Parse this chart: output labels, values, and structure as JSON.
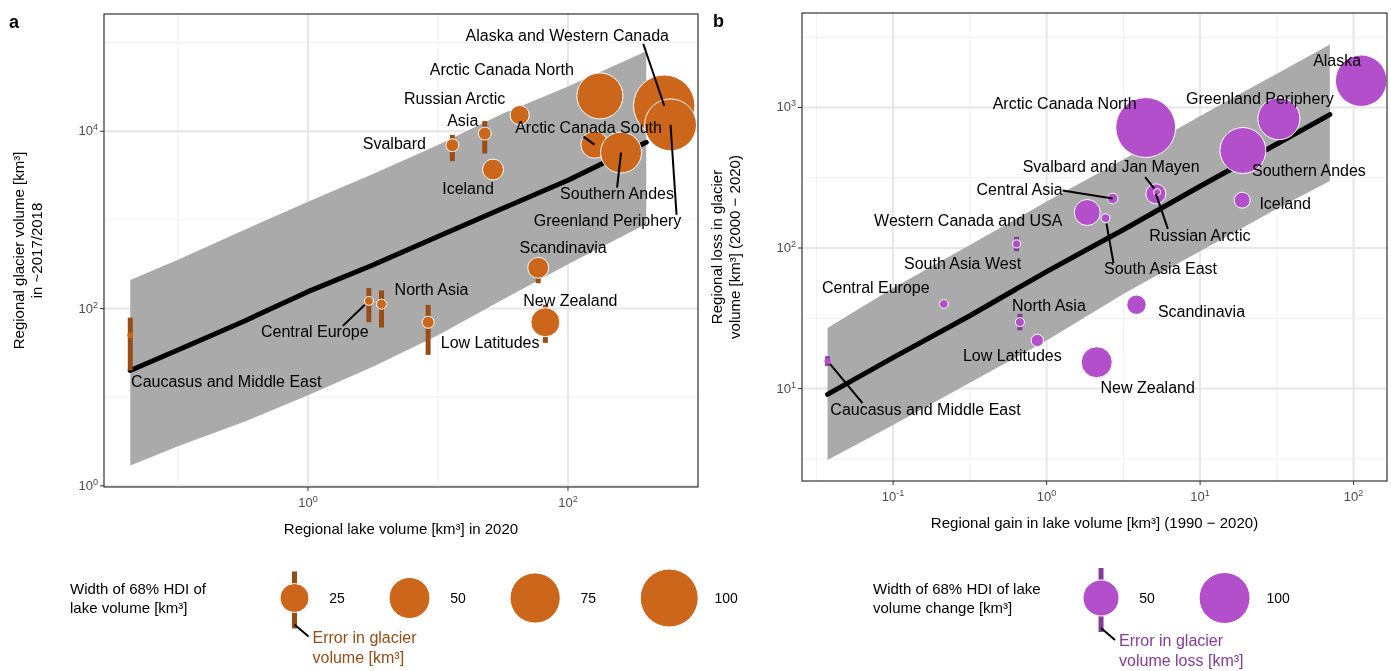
{
  "chart_data": [
    {
      "type": "bubble",
      "title": "a",
      "xlabel": "Regional lake volume [km³] in 2020",
      "ylabel": "Regional glacier volume [km³]\nin ~2017/2018",
      "legend_title": "Width of 68% HDI of\nlake volume [km³]",
      "log": "xy",
      "grid": true,
      "size_legend": [
        25,
        50,
        75,
        100
      ],
      "xlim": [
        0.027,
        1000
      ],
      "ylim": [
        0.97,
        210000
      ],
      "xticks": [
        {
          "value": 1,
          "label": "10$^{0}$"
        },
        {
          "value": 100,
          "label": "10$^{2}$"
        }
      ],
      "yticks": [
        {
          "value": 1,
          "label": "10$^{0}$"
        },
        {
          "value": 100,
          "label": "10$^{2}$"
        },
        {
          "value": 10000,
          "label": "10$^{4}$"
        }
      ],
      "series": [
        {
          "type": "line",
          "color": "#000000",
          "x": [
            0.043,
            0.1,
            0.316,
            1,
            3.16,
            10,
            31.6,
            100,
            400
          ],
          "values": [
            20,
            34,
            71,
            155,
            310,
            650,
            1350,
            2800,
            7500
          ],
          "lower": [
            1.7,
            2.8,
            5.2,
            10.5,
            22,
            50,
            126,
            316,
            900
          ],
          "upper": [
            210,
            355,
            760,
            1600,
            3300,
            7000,
            15800,
            32000,
            80000
          ]
        },
        {
          "color": "#cc661a",
          "x": [
            0.043,
            2.94,
            3.68,
            8.4,
            12.9,
            22.9,
            26.5,
            42.5,
            59,
            67,
            160,
            256,
            176,
            550,
            615
          ],
          "values": [
            50,
            122,
            112,
            70,
            6950,
            9400,
            3700,
            15200,
            288,
            70,
            7050,
            5750,
            25000,
            19400,
            11800
          ],
          "sizes": [
            1,
            2.4,
            3,
            4.3,
            5,
            5,
            13,
            11,
            13,
            25,
            22,
            50,
            63,
            112,
            80
          ],
          "errors": [
            [
              20,
              79
            ],
            [
              70,
              170
            ],
            [
              61,
              160
            ],
            [
              30,
              110
            ],
            [
              4600,
              9100
            ],
            [
              5600,
              13000
            ],
            null,
            null,
            [
              193,
              380
            ],
            [
              41,
              110
            ],
            null,
            null,
            null,
            null,
            null
          ]
        }
      ],
      "annotations": [
        {
          "text": "Caucasus and Middle East",
          "x": 0.043,
          "y": 50
        },
        {
          "text": "Central Europe",
          "x": 2.94,
          "y": 122
        },
        {
          "text": "North Asia",
          "x": 3.68,
          "y": 112
        },
        {
          "text": "Low Latitudes",
          "x": 8.4,
          "y": 70
        },
        {
          "text": "Svalbard",
          "x": 12.9,
          "y": 6950
        },
        {
          "text": "Asia",
          "x": 22.9,
          "y": 9400
        },
        {
          "text": "Iceland",
          "x": 26.5,
          "y": 3700
        },
        {
          "text": "Russian Arctic",
          "x": 42.5,
          "y": 15200
        },
        {
          "text": "Scandinavia",
          "x": 59,
          "y": 288
        },
        {
          "text": "New Zealand",
          "x": 67,
          "y": 70
        },
        {
          "text": "Arctic Canada South",
          "x": 160,
          "y": 7050
        },
        {
          "text": "Southern Andes",
          "x": 256,
          "y": 5750
        },
        {
          "text": "Arctic Canada North",
          "x": 176,
          "y": 25000
        },
        {
          "text": "Alaska and Western Canada",
          "x": 550,
          "y": 19400
        },
        {
          "text": "Greenland Periphery",
          "x": 615,
          "y": 11800
        },
        "Error in glacier\nvolume [km³]"
      ]
    },
    {
      "type": "bubble",
      "title": "b",
      "xlabel": "Regional gain in lake volume [km³] (1990 − 2020)",
      "ylabel": "Regional loss in glacier\nvolume [km³] (2000 − 2020)",
      "legend_title": "Width of 68% HDI of lake\nvolume change [km³]",
      "log": "xy",
      "grid": true,
      "size_legend": [
        50,
        100
      ],
      "xlim": [
        0.0255,
        165
      ],
      "ylim": [
        2.2,
        4700
      ],
      "xticks": [
        {
          "value": 0.1,
          "label": "10$^{-1}$"
        },
        {
          "value": 1,
          "label": "10$^{0}$"
        },
        {
          "value": 10,
          "label": "10$^{1}$"
        },
        {
          "value": 100,
          "label": "10$^{2}$"
        }
      ],
      "yticks": [
        {
          "value": 10,
          "label": "10$^{1}$"
        },
        {
          "value": 100,
          "label": "10$^{2}$"
        },
        {
          "value": 1000,
          "label": "10$^{3}$"
        }
      ],
      "series": [
        {
          "type": "line",
          "color": "#000000",
          "x": [
            0.0374,
            0.1,
            0.316,
            1,
            3.16,
            10,
            31.6,
            70
          ],
          "values": [
            9.1,
            16.6,
            33,
            68,
            135,
            275,
            550,
            890
          ],
          "lower": [
            3.1,
            5.5,
            11,
            22,
            47,
            95,
            190,
            300
          ],
          "upper": [
            27,
            52,
            105,
            214,
            427,
            870,
            1740,
            2800
          ]
        },
        {
          "color": "#b44fcc",
          "x": [
            0.0374,
            0.214,
            0.637,
            0.67,
            0.87,
            2.42,
            2.69,
            1.84,
            2.12,
            3.85,
            5.15,
            5.25,
            18.8,
            19,
            32.6,
            4.42,
            112
          ],
          "values": [
            15.7,
            40,
            107,
            29.7,
            22,
            163,
            225,
            179,
            15.4,
            39.5,
            243,
            250,
            219,
            494,
            832,
            720,
            1550
          ],
          "sizes": [
            1.5,
            3,
            2.5,
            3.1,
            5.9,
            3,
            4.3,
            26,
            37,
            14.5,
            15.4,
            1.9,
            9.8,
            81,
            68,
            138,
            102
          ],
          "errors": [
            [
              14.5,
              17
            ],
            null,
            [
              95,
              120
            ],
            [
              26,
              34
            ],
            null,
            null,
            null,
            null,
            null,
            null,
            null,
            null,
            null,
            null,
            null,
            null,
            null
          ]
        }
      ],
      "annotations": [
        {
          "text": "Caucasus and Middle East",
          "x": 0.0374,
          "y": 15.7
        },
        {
          "text": "Central Europe",
          "x": 0.214,
          "y": 40
        },
        {
          "text": "South Asia West",
          "x": 0.637,
          "y": 107
        },
        {
          "text": "North Asia",
          "x": 0.67,
          "y": 29.7
        },
        {
          "text": "Low Latitudes",
          "x": 0.87,
          "y": 22
        },
        {
          "text": "South Asia East",
          "x": 2.42,
          "y": 163
        },
        {
          "text": "Central Asia",
          "x": 2.69,
          "y": 225
        },
        {
          "text": "Western Canada and USA",
          "x": 1.84,
          "y": 179
        },
        {
          "text": "New Zealand",
          "x": 2.12,
          "y": 15.4
        },
        {
          "text": "Scandinavia",
          "x": 3.85,
          "y": 39.5
        },
        {
          "text": "Russian Arctic",
          "x": 5.15,
          "y": 243
        },
        {
          "text": "Svalbard and Jan Mayen",
          "x": 5.25,
          "y": 250
        },
        {
          "text": "Iceland",
          "x": 18.8,
          "y": 219
        },
        {
          "text": "Southern Andes",
          "x": 19,
          "y": 494
        },
        {
          "text": "Greenland Periphery",
          "x": 32.6,
          "y": 832
        },
        {
          "text": "Arctic Canada North",
          "x": 4.42,
          "y": 720
        },
        {
          "text": "Alaska",
          "x": 112,
          "y": 1550
        },
        "Error in glacier\nvolume loss [km³]"
      ]
    }
  ]
}
